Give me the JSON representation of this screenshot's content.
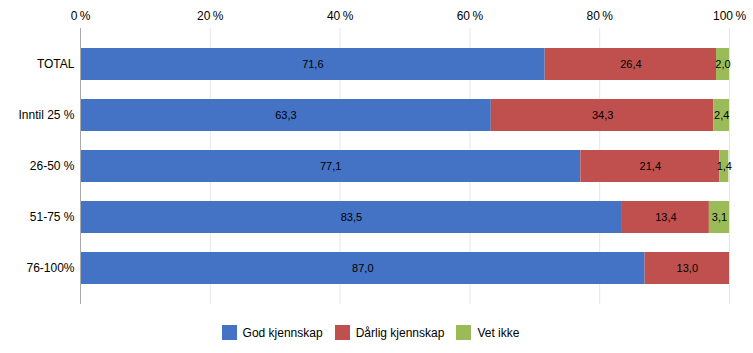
{
  "chart_data": {
    "type": "bar",
    "orientation": "horizontal",
    "stacked": true,
    "data_labels": true,
    "categories": [
      "76-100%",
      "51-75 %",
      "26-50 %",
      "Inntil 25 %",
      "TOTAL"
    ],
    "series": [
      {
        "name": "God kjennskap",
        "color": "#4472C4",
        "values": [
          87.0,
          83.5,
          77.1,
          63.3,
          71.6
        ],
        "value_labels": [
          "87,0",
          "83,5",
          "77,1",
          "63,3",
          "71,6"
        ]
      },
      {
        "name": "Dårlig kjennskap",
        "color": "#C0504D",
        "values": [
          13.0,
          13.4,
          21.4,
          34.3,
          26.4
        ],
        "value_labels": [
          "13,0",
          "13,4",
          "21,4",
          "34,3",
          "26,4"
        ]
      },
      {
        "name": "Vet ikke",
        "color": "#9BBB59",
        "values": [
          0.0,
          3.1,
          1.4,
          2.4,
          2.0
        ],
        "value_labels": [
          null,
          "3,1",
          "1,4",
          "2,4",
          "2,0"
        ]
      }
    ],
    "xlim": [
      0,
      100
    ],
    "xticks": [
      {
        "value": 0,
        "label": "0 %"
      },
      {
        "value": 20,
        "label": "20 %"
      },
      {
        "value": 40,
        "label": "40 %"
      },
      {
        "value": 60,
        "label": "60 %"
      },
      {
        "value": 80,
        "label": "80 %"
      },
      {
        "value": 100,
        "label": "100 %"
      }
    ],
    "grid": true,
    "legend": "bottom"
  }
}
